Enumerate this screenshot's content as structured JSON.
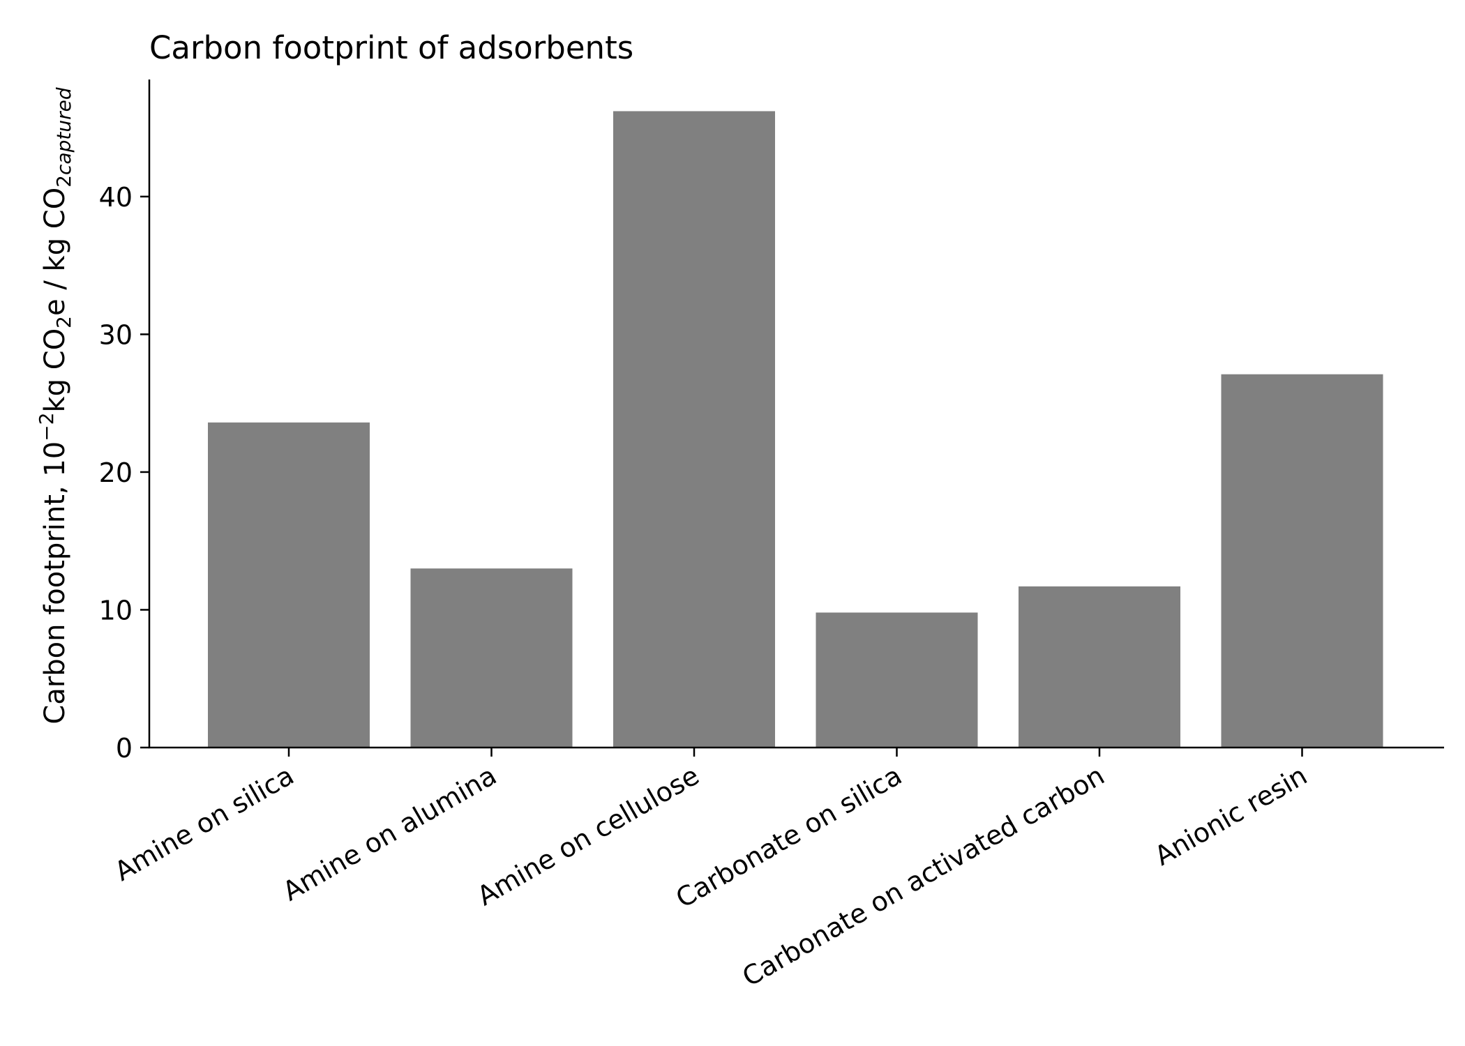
{
  "chart_data": {
    "type": "bar",
    "title": "Carbon footprint of adsorbents",
    "xlabel": "",
    "ylabel": {
      "prefix": "Carbon footprint, 10",
      "exponent": "−2",
      "middle1": "kg CO",
      "sub1": "2",
      "middle2": "e / kg CO",
      "sub2": "2",
      "sub2_italic": "captured"
    },
    "categories": [
      "Amine on silica",
      "Amine on alumina",
      "Amine on cellulose",
      "Carbonate on silica",
      "Carbonate on activated carbon",
      "Anionic resin"
    ],
    "values": [
      23.6,
      13.0,
      46.2,
      9.8,
      11.7,
      27.1
    ],
    "ylim": [
      0,
      48.5
    ],
    "yticks": [
      0,
      10,
      20,
      30,
      40
    ],
    "bar_color": "#808080",
    "grid": false
  }
}
